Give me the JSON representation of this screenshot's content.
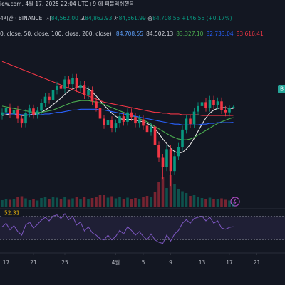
{
  "header": {
    "source": "iew.com, 4월 17, 2025 22:04 UTC+9 에 퍼블리쉬했음",
    "interval": "4시간 · BINANCE",
    "ohlc": [
      {
        "label": "시",
        "value": "84,562.00"
      },
      {
        "label": "고",
        "value": "84,862.93"
      },
      {
        "label": "저",
        "value": "84,561.99"
      },
      {
        "label": "종",
        "value": "84,708.55"
      }
    ],
    "change": "+146.55 (+0.17%)"
  },
  "indicator": {
    "params": "0, close, 50, close, 100, close, 200, close)",
    "values": [
      "84,708.55",
      "84,502.13",
      "83,327.10",
      "82,733.04",
      "83,616.41"
    ],
    "colors": [
      "#5b9cf6",
      "#d1d4dc",
      "#4caf50",
      "#2962ff",
      "#f23645"
    ]
  },
  "price_marker": "B",
  "chart_data": [
    {
      "type": "candlestick",
      "up_color": "#089981",
      "down_color": "#f23645",
      "xlim": [
        -0.545,
        72.18
      ],
      "ylim": [
        72880,
        94700
      ],
      "volume_lim": [
        0,
        10000
      ],
      "xticks": [
        {
          "value": 1,
          "label": "17"
        },
        {
          "value": 8,
          "label": "21"
        },
        {
          "value": 16,
          "label": "25"
        },
        {
          "value": 29,
          "label": "4월"
        },
        {
          "value": 36,
          "label": "5"
        },
        {
          "value": 43,
          "label": "9"
        },
        {
          "value": 51,
          "label": "13"
        },
        {
          "value": 58,
          "label": "17"
        },
        {
          "value": 65,
          "label": "21"
        }
      ],
      "x": [
        0,
        1,
        2,
        3,
        4,
        5,
        6,
        7,
        8,
        9,
        10,
        11,
        12,
        13,
        14,
        15,
        16,
        17,
        18,
        19,
        20,
        21,
        22,
        23,
        24,
        25,
        26,
        27,
        28,
        29,
        30,
        31,
        32,
        33,
        34,
        35,
        36,
        37,
        38,
        39,
        40,
        41,
        42,
        43,
        44,
        45,
        46,
        47,
        48,
        49,
        50,
        51,
        52,
        53,
        54,
        55,
        56,
        57,
        58,
        59
      ],
      "open": [
        83600,
        84000,
        84600,
        83800,
        84300,
        83200,
        82600,
        83900,
        84500,
        83700,
        84200,
        85200,
        86000,
        85600,
        86800,
        87400,
        87000,
        88200,
        87600,
        88400,
        87100,
        87500,
        86200,
        86800,
        85400,
        84600,
        83200,
        82400,
        83000,
        82000,
        82600,
        83500,
        82800,
        84000,
        83400,
        82600,
        83100,
        82300,
        81500,
        82200,
        79800,
        78200,
        77000,
        79300,
        76500,
        78400,
        79600,
        81800,
        83200,
        82500,
        84100,
        84800,
        85300,
        84600,
        85600,
        84900,
        85400,
        84300,
        84000,
        84562
      ],
      "high": [
        84500,
        85100,
        85100,
        84800,
        84800,
        83700,
        84400,
        85000,
        85000,
        84700,
        85700,
        86500,
        86500,
        87300,
        87900,
        87900,
        88700,
        88700,
        88900,
        88900,
        88000,
        88000,
        87300,
        87300,
        85900,
        85100,
        83700,
        83500,
        83500,
        83100,
        84000,
        84000,
        84500,
        84500,
        83900,
        83600,
        83600,
        82800,
        82700,
        82700,
        80300,
        78700,
        79800,
        79800,
        78900,
        80100,
        82300,
        83700,
        83700,
        84600,
        85300,
        85800,
        85800,
        86100,
        86100,
        85900,
        85900,
        84800,
        84860,
        84862.93
      ],
      "low": [
        83100,
        83500,
        83300,
        83300,
        82700,
        82100,
        82100,
        83400,
        83200,
        83200,
        83700,
        84700,
        85100,
        85100,
        86300,
        86500,
        86500,
        87100,
        87100,
        86600,
        86600,
        85700,
        85700,
        84900,
        84100,
        82700,
        81900,
        81900,
        81500,
        81500,
        82100,
        82300,
        82300,
        82900,
        82100,
        82100,
        81800,
        81000,
        81000,
        79300,
        77700,
        75500,
        76500,
        74600,
        76000,
        77900,
        79100,
        81300,
        82000,
        82000,
        83600,
        84300,
        84100,
        84100,
        84400,
        84400,
        83800,
        83500,
        83500,
        84561.99
      ],
      "close": [
        84000,
        84600,
        83800,
        84300,
        83200,
        82600,
        83900,
        84500,
        83700,
        84200,
        85200,
        86000,
        85600,
        86800,
        87400,
        87000,
        88200,
        87600,
        88400,
        87100,
        87500,
        86200,
        86800,
        85400,
        84600,
        83200,
        82400,
        83000,
        82000,
        82600,
        83500,
        82800,
        84000,
        83400,
        82600,
        83100,
        82300,
        81500,
        82200,
        79800,
        78200,
        77000,
        79300,
        76500,
        78400,
        79600,
        81800,
        83200,
        82500,
        84100,
        84800,
        85300,
        84600,
        85600,
        84900,
        85400,
        84300,
        84000,
        84562,
        84708.55
      ],
      "volume": [
        1800,
        2200,
        1900,
        2100,
        2600,
        2900,
        2300,
        1800,
        2000,
        1700,
        2400,
        2800,
        2200,
        2600,
        2500,
        2000,
        2700,
        1900,
        2300,
        2600,
        2100,
        2800,
        2000,
        2400,
        2700,
        3200,
        3400,
        2500,
        2900,
        2300,
        2600,
        2200,
        2500,
        2100,
        2400,
        2200,
        2600,
        3000,
        2800,
        4200,
        6800,
        8200,
        5200,
        9000,
        6400,
        5000,
        4300,
        3800,
        3000,
        3200,
        2600,
        2400,
        2100,
        2500,
        2000,
        2200,
        2300,
        1900,
        1700,
        900
      ],
      "lines": [
        {
          "color": "#e6e6e6",
          "values": [
            83600,
            83700,
            83800,
            83800,
            83700,
            83600,
            83600,
            83700,
            83800,
            83800,
            84000,
            84300,
            84600,
            85000,
            85400,
            85800,
            86300,
            86700,
            87000,
            87200,
            87300,
            87200,
            87000,
            86600,
            86100,
            85500,
            84900,
            84400,
            83900,
            83500,
            83200,
            83100,
            83100,
            83100,
            83000,
            82900,
            82800,
            82600,
            82300,
            81900,
            81300,
            80600,
            80000,
            79400,
            79000,
            78800,
            78900,
            79300,
            79900,
            80700,
            81600,
            82500,
            83300,
            83900,
            84300,
            84500,
            84600,
            84600,
            84500,
            84502.13
          ]
        },
        {
          "color": "#4caf50",
          "values": [
            84800,
            84700,
            84600,
            84500,
            84400,
            84300,
            84200,
            84100,
            84000,
            84000,
            84000,
            84100,
            84200,
            84300,
            84500,
            84700,
            84900,
            85100,
            85300,
            85400,
            85500,
            85500,
            85500,
            85400,
            85300,
            85200,
            85000,
            84800,
            84600,
            84400,
            84200,
            84000,
            83800,
            83600,
            83400,
            83200,
            83000,
            82800,
            82500,
            82200,
            81900,
            81600,
            81300,
            81000,
            80800,
            80600,
            80500,
            80500,
            80600,
            80800,
            81100,
            81400,
            81700,
            82000,
            82300,
            82600,
            82800,
            83000,
            83200,
            83327.1
          ]
        },
        {
          "color": "#2962ff",
          "values": [
            83900,
            83900,
            83800,
            83800,
            83800,
            83700,
            83700,
            83700,
            83700,
            83700,
            83700,
            83800,
            83800,
            83900,
            84000,
            84000,
            84100,
            84200,
            84300,
            84300,
            84400,
            84400,
            84400,
            84400,
            84400,
            84300,
            84300,
            84200,
            84100,
            84000,
            83900,
            83800,
            83700,
            83600,
            83500,
            83400,
            83300,
            83200,
            83100,
            83000,
            82900,
            82800,
            82700,
            82600,
            82500,
            82500,
            82400,
            82400,
            82400,
            82400,
            82400,
            82500,
            82500,
            82600,
            82600,
            82700,
            82700,
            82700,
            82700,
            82733.04
          ]
        },
        {
          "color": "#f23645",
          "values": [
            90500,
            90300,
            90100,
            89900,
            89700,
            89500,
            89300,
            89100,
            88900,
            88700,
            88500,
            88300,
            88100,
            87900,
            87700,
            87500,
            87300,
            87100,
            86900,
            86700,
            86500,
            86300,
            86100,
            85900,
            85700,
            85500,
            85300,
            85200,
            85100,
            85000,
            84900,
            84800,
            84700,
            84600,
            84500,
            84400,
            84300,
            84200,
            84100,
            84000,
            84000,
            83900,
            83900,
            83800,
            83800,
            83800,
            83700,
            83700,
            83700,
            83700,
            83700,
            83600,
            83600,
            83600,
            83600,
            83600,
            83600,
            83600,
            83600,
            83616.41
          ]
        }
      ]
    },
    {
      "type": "line",
      "color": "#7e57c2",
      "ylim": [
        20,
        80
      ],
      "band": [
        30,
        70
      ],
      "x": [
        0,
        1,
        2,
        3,
        4,
        5,
        6,
        7,
        8,
        9,
        10,
        11,
        12,
        13,
        14,
        15,
        16,
        17,
        18,
        19,
        20,
        21,
        22,
        23,
        24,
        25,
        26,
        27,
        28,
        29,
        30,
        31,
        32,
        33,
        34,
        35,
        36,
        37,
        38,
        39,
        40,
        41,
        42,
        43,
        44,
        45,
        46,
        47,
        48,
        49,
        50,
        51,
        52,
        53,
        54,
        55,
        56,
        57,
        58,
        59
      ],
      "values": [
        52,
        58,
        47,
        54,
        44,
        38,
        55,
        60,
        50,
        56,
        63,
        68,
        62,
        70,
        72,
        66,
        74,
        64,
        70,
        55,
        60,
        45,
        52,
        42,
        38,
        32,
        30,
        38,
        30,
        36,
        46,
        40,
        52,
        46,
        38,
        44,
        36,
        30,
        40,
        30,
        26,
        24,
        38,
        28,
        40,
        46,
        58,
        64,
        58,
        66,
        68,
        70,
        62,
        68,
        58,
        62,
        50,
        48,
        51,
        52.31
      ]
    }
  ]
}
